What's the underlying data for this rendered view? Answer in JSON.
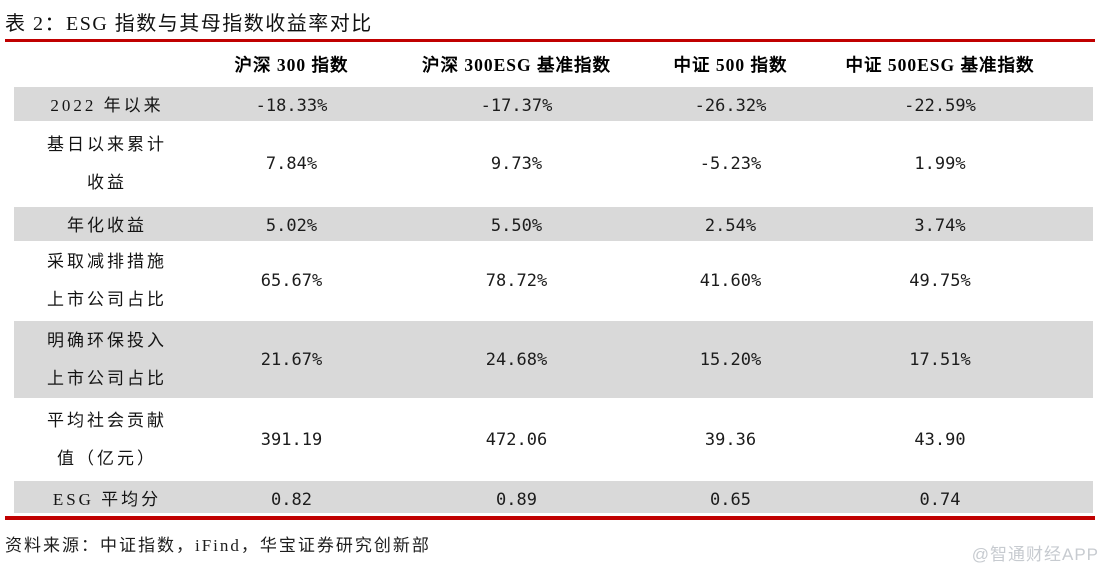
{
  "title": "表 2：ESG 指数与其母指数收益率对比",
  "table": {
    "columns": [
      "沪深 300 指数",
      "沪深 300ESG 基准指数",
      "中证 500 指数",
      "中证 500ESG 基准指数"
    ],
    "rows": [
      {
        "label": "2022 年以来",
        "values": [
          "-18.33%",
          "-17.37%",
          "-26.32%",
          "-22.59%"
        ]
      },
      {
        "label": "基日以来累计\n收益",
        "values": [
          "7.84%",
          "9.73%",
          "-5.23%",
          "1.99%"
        ]
      },
      {
        "label": "年化收益",
        "values": [
          "5.02%",
          "5.50%",
          "2.54%",
          "3.74%"
        ]
      },
      {
        "label": "采取减排措施\n上市公司占比",
        "values": [
          "65.67%",
          "78.72%",
          "41.60%",
          "49.75%"
        ]
      },
      {
        "label": "明确环保投入\n上市公司占比",
        "values": [
          "21.67%",
          "24.68%",
          "15.20%",
          "17.51%"
        ]
      },
      {
        "label": "平均社会贡献\n值（亿元）",
        "values": [
          "391.19",
          "472.06",
          "39.36",
          "43.90"
        ]
      },
      {
        "label": "ESG 平均分",
        "values": [
          "0.82",
          "0.89",
          "0.65",
          "0.74"
        ]
      }
    ]
  },
  "source": "资料来源：中证指数，iFind，华宝证券研究创新部",
  "watermark": "@智通财经APP",
  "colors": {
    "accent_red": "#c00000",
    "row_stripe_grey": "#d9d9d9",
    "watermark_grey": "#c7cbd0",
    "text_black": "#1a1a1a"
  }
}
